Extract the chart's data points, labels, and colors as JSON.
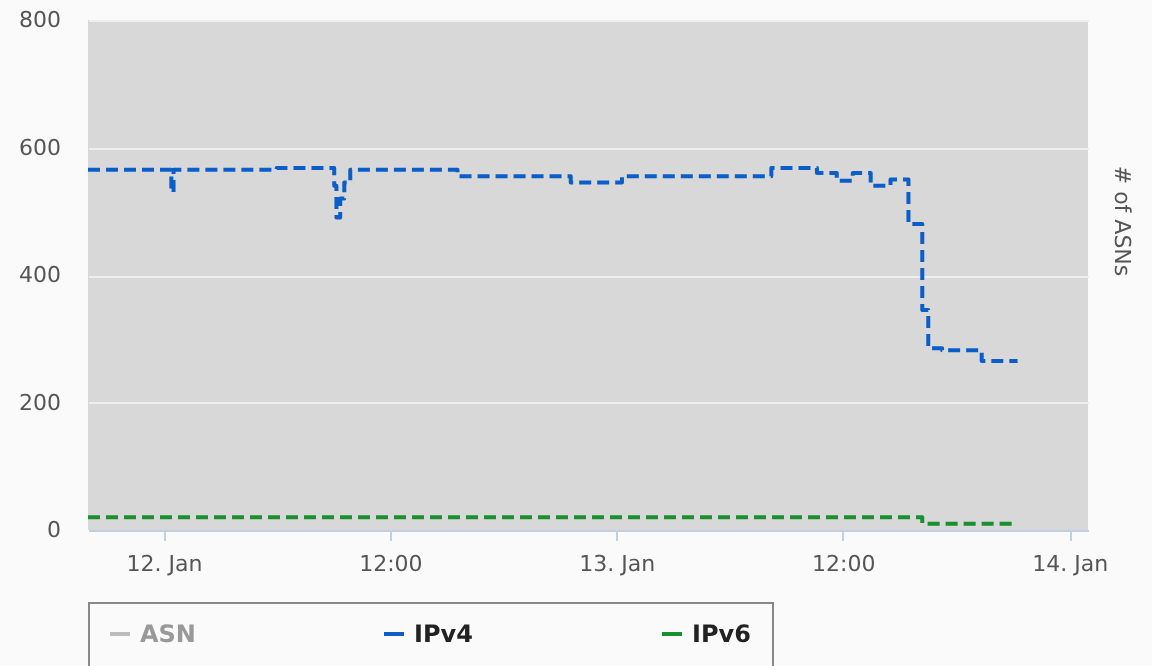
{
  "chart_data": {
    "type": "step",
    "ylabel": "# of ASNs",
    "xlim": [
      "--01-11T20:00",
      "--01-14T01:00"
    ],
    "xticks": [
      {
        "value": "--01-12",
        "label": "12. Jan"
      },
      {
        "value": "--01-12T12:00",
        "label": "12:00"
      },
      {
        "value": "--01-13",
        "label": "13. Jan"
      },
      {
        "value": "--01-13T12:00",
        "label": "12:00"
      },
      {
        "value": "--01-14",
        "label": "14. Jan"
      }
    ],
    "ylim": [
      0,
      800
    ],
    "yticks": [
      0,
      200,
      400,
      600,
      800
    ],
    "grid": "y",
    "legend": "bottom",
    "line_style": "dashed",
    "series": [
      {
        "name": "ASN",
        "color": "#bbbbbb"
      },
      {
        "name": "IPv4",
        "color": "#0b5ec9",
        "x": [
          "--01-11T20:00",
          "--01-12T00:25",
          "--01-12T00:32",
          "--01-12T06:00",
          "--01-12T09:03",
          "--01-12T09:10",
          "--01-12T09:22",
          "--01-12T09:35",
          "--01-12T09:54",
          "--01-12T10:06",
          "--01-12T15:35",
          "--01-12T21:35",
          "--01-13T00:18",
          "--01-13T08:13",
          "--01-13T10:38",
          "--01-13T11:41",
          "--01-13T12:32",
          "--01-13T13:29",
          "--01-13T14:32",
          "--01-13T15:29",
          "--01-13T16:13",
          "--01-13T16:32",
          "--01-13T17:16",
          "--01-13T19:22",
          "--01-13T21:16"
        ],
        "values": [
          565,
          530,
          565,
          568,
          540,
          490,
          520,
          545,
          565,
          565,
          555,
          545,
          555,
          568,
          560,
          548,
          560,
          540,
          550,
          480,
          345,
          285,
          282,
          265,
          265
        ]
      },
      {
        "name": "IPv6",
        "color": "#1a8f2e",
        "x": [
          "--01-11T20:00",
          "--01-13T16:13",
          "--01-13T21:16"
        ],
        "values": [
          20,
          10,
          10
        ]
      }
    ]
  }
}
